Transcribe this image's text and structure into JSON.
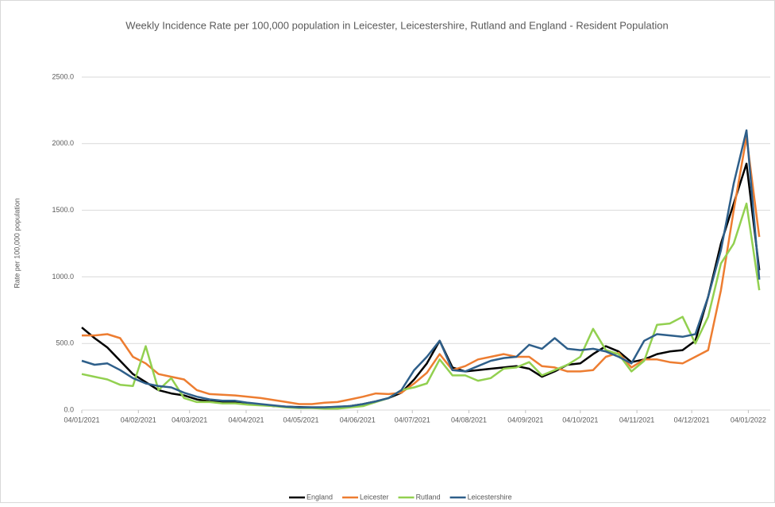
{
  "chart_data": {
    "type": "line",
    "title": "Weekly Incidence Rate per 100,000 population in Leicester, Leicestershire, Rutland and England - Resident Population",
    "y_label": "Rate per 100,000 population",
    "x": [
      "04/01/2021",
      "11/01/2021",
      "18/01/2021",
      "25/01/2021",
      "01/02/2021",
      "08/02/2021",
      "15/02/2021",
      "22/02/2021",
      "01/03/2021",
      "08/03/2021",
      "15/03/2021",
      "22/03/2021",
      "29/03/2021",
      "05/04/2021",
      "12/04/2021",
      "19/04/2021",
      "26/04/2021",
      "03/05/2021",
      "10/05/2021",
      "17/05/2021",
      "24/05/2021",
      "31/05/2021",
      "07/06/2021",
      "14/06/2021",
      "21/06/2021",
      "28/06/2021",
      "05/07/2021",
      "12/07/2021",
      "19/07/2021",
      "26/07/2021",
      "02/08/2021",
      "09/08/2021",
      "16/08/2021",
      "23/08/2021",
      "30/08/2021",
      "06/09/2021",
      "13/09/2021",
      "20/09/2021",
      "27/09/2021",
      "04/10/2021",
      "11/10/2021",
      "18/10/2021",
      "25/10/2021",
      "01/11/2021",
      "08/11/2021",
      "15/11/2021",
      "22/11/2021",
      "29/11/2021",
      "06/12/2021",
      "13/12/2021",
      "20/12/2021",
      "27/12/2021",
      "03/01/2022",
      "10/01/2022"
    ],
    "series": [
      {
        "name": "England",
        "color": "#000000",
        "values": [
          620,
          540,
          470,
          370,
          270,
          210,
          150,
          125,
          110,
          80,
          65,
          60,
          60,
          50,
          40,
          30,
          25,
          22,
          20,
          20,
          22,
          30,
          45,
          65,
          90,
          130,
          230,
          350,
          520,
          320,
          290,
          300,
          310,
          320,
          330,
          310,
          250,
          290,
          340,
          350,
          420,
          480,
          440,
          360,
          380,
          420,
          440,
          450,
          520,
          850,
          1250,
          1550,
          1850,
          1050
        ]
      },
      {
        "name": "Leicester",
        "color": "#ed7d31",
        "values": [
          560,
          560,
          570,
          540,
          400,
          350,
          270,
          250,
          230,
          150,
          120,
          115,
          110,
          100,
          90,
          75,
          60,
          45,
          45,
          55,
          60,
          80,
          100,
          125,
          120,
          130,
          200,
          280,
          420,
          300,
          330,
          380,
          400,
          420,
          400,
          400,
          330,
          320,
          290,
          290,
          300,
          400,
          430,
          320,
          380,
          380,
          360,
          350,
          400,
          450,
          900,
          1500,
          2050,
          1300
        ]
      },
      {
        "name": "Rutland",
        "color": "#92d050",
        "values": [
          270,
          250,
          230,
          190,
          180,
          480,
          150,
          240,
          90,
          60,
          60,
          50,
          50,
          40,
          35,
          30,
          20,
          15,
          15,
          10,
          10,
          20,
          30,
          60,
          90,
          150,
          170,
          200,
          380,
          260,
          260,
          220,
          240,
          310,
          320,
          360,
          260,
          300,
          340,
          400,
          610,
          450,
          420,
          290,
          370,
          640,
          650,
          700,
          500,
          700,
          1100,
          1250,
          1550,
          900
        ]
      },
      {
        "name": "Leicestershire",
        "color": "#2e5f8a",
        "values": [
          370,
          340,
          350,
          300,
          240,
          200,
          180,
          170,
          130,
          100,
          80,
          70,
          70,
          55,
          45,
          35,
          25,
          20,
          20,
          20,
          25,
          30,
          45,
          65,
          90,
          150,
          300,
          400,
          520,
          300,
          290,
          330,
          370,
          390,
          400,
          490,
          460,
          540,
          460,
          450,
          460,
          440,
          400,
          350,
          520,
          570,
          560,
          550,
          570,
          850,
          1200,
          1700,
          2100,
          980
        ]
      }
    ],
    "xlim": [
      "04/01/2021",
      "16/01/2022"
    ],
    "xticks": [
      "04/01/2021",
      "04/02/2021",
      "04/03/2021",
      "04/04/2021",
      "04/05/2021",
      "04/06/2021",
      "04/07/2021",
      "04/08/2021",
      "04/09/2021",
      "04/10/2021",
      "04/11/2021",
      "04/12/2021",
      "04/01/2022"
    ],
    "ylim": [
      0,
      2500
    ],
    "yticks": [
      {
        "value": 0,
        "label": "0.0"
      },
      {
        "value": 500,
        "label": "500.0"
      },
      {
        "value": 1000,
        "label": "1000.0"
      },
      {
        "value": 1500,
        "label": "1500.0"
      },
      {
        "value": 2000,
        "label": "2000.0"
      },
      {
        "value": 2500,
        "label": "2500.0"
      }
    ],
    "grid": true,
    "legend": "bottom"
  }
}
